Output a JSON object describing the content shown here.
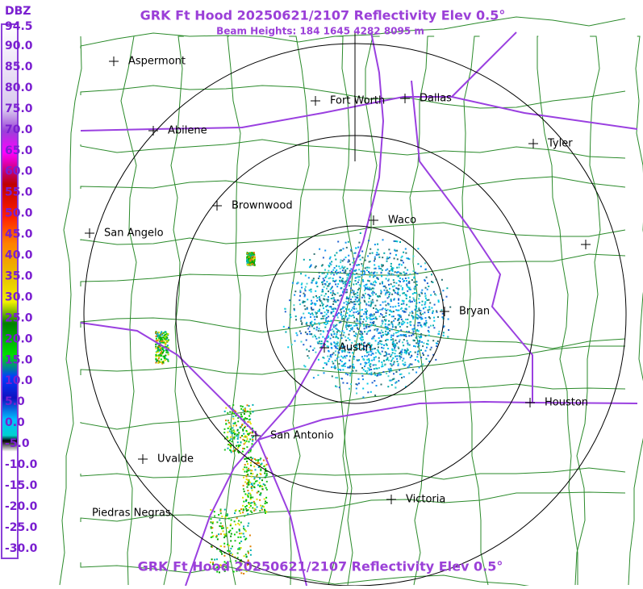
{
  "header": {
    "title": "GRK Ft Hood 20250621/2107 Reflectivity Elev 0.5°",
    "subtitle": "Beam Heights: 184 1645 4282 8095 m"
  },
  "legend": {
    "unit": "DBZ",
    "labels": [
      "94.5",
      "90.0",
      "85.0",
      "80.0",
      "75.0",
      "70.0",
      "65.0",
      "60.0",
      "55.0",
      "50.0",
      "45.0",
      "40.0",
      "35.0",
      "30.0",
      "25.0",
      "20.0",
      "15.0",
      "10.0",
      "5.0",
      "0.0",
      "-5.0",
      "-10.0",
      "-15.0",
      "-20.0",
      "-25.0",
      "-30.0"
    ]
  },
  "cities": [
    "Aspermont",
    "Fort Worth",
    "Dallas",
    "Abilene",
    "Tyler",
    "Brownwood",
    "Waco",
    "San Angelo",
    "Bryan",
    "Austin",
    "Houston",
    "San Antonio",
    "Uvalde",
    "Victoria",
    "Piedras Negras"
  ],
  "footer": {
    "title": "GRK Ft Hood 20250621/2107 Reflectivity Elev 0.5°"
  }
}
